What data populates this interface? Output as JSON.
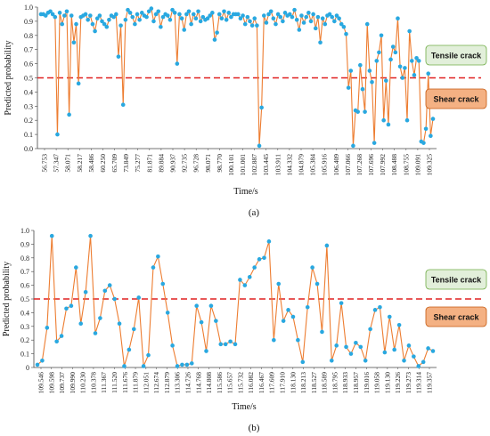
{
  "colors": {
    "line": "#ED7D31",
    "marker": "#29A8E0",
    "threshold": "#E02020",
    "tensile_box": "#E2EFDA",
    "tensile_border": "#70AD47",
    "shear_box": "#F4B183",
    "shear_border": "#C55A11",
    "axis": "#444444"
  },
  "chart_data": [
    {
      "type": "line",
      "panel_label": "(a)",
      "xlabel": "Time/s",
      "ylabel": "Predicted probability",
      "ylim": [
        0,
        1.0
      ],
      "yticks": [
        "0.0",
        "0.1",
        "0.2",
        "0.3",
        "0.4",
        "0.5",
        "0.6",
        "0.7",
        "0.8",
        "0.9",
        "1.0"
      ],
      "grid": false,
      "threshold": 0.5,
      "annotations": [
        {
          "text": "Tensile crack",
          "style": "tensile"
        },
        {
          "text": "Shear crack",
          "style": "shear"
        }
      ],
      "tick_labels": [
        "56.753",
        "57.347",
        "58.071",
        "58.217",
        "58.486",
        "60.250",
        "65.709",
        "73.849",
        "75.277",
        "81.871",
        "89.884",
        "90.937",
        "92.735",
        "96.728",
        "98.071",
        "98.770",
        "100.101",
        "101.001",
        "102.887",
        "103.445",
        "103.911",
        "104.332",
        "104.879",
        "105.384",
        "105.916",
        "106.409",
        "107.066",
        "107.268",
        "107.696",
        "107.992",
        "108.488",
        "108.755",
        "109.091",
        "109.325"
      ],
      "values": [
        0.95,
        0.95,
        0.94,
        0.96,
        0.97,
        0.95,
        0.93,
        0.1,
        0.96,
        0.88,
        0.94,
        0.97,
        0.24,
        0.94,
        0.75,
        0.88,
        0.46,
        0.93,
        0.94,
        0.95,
        0.91,
        0.94,
        0.88,
        0.83,
        0.92,
        0.94,
        0.9,
        0.88,
        0.86,
        0.91,
        0.94,
        0.93,
        0.95,
        0.65,
        0.87,
        0.31,
        0.91,
        0.98,
        0.96,
        0.93,
        0.88,
        0.95,
        0.91,
        0.96,
        0.94,
        0.93,
        0.97,
        0.99,
        0.9,
        0.95,
        0.97,
        0.86,
        0.93,
        0.95,
        0.94,
        0.91,
        0.98,
        0.96,
        0.6,
        0.95,
        0.92,
        0.84,
        0.95,
        0.97,
        0.88,
        0.95,
        0.92,
        0.97,
        0.9,
        0.93,
        0.91,
        0.92,
        0.94,
        0.96,
        0.77,
        0.82,
        0.95,
        0.92,
        0.97,
        0.91,
        0.96,
        0.93,
        0.95,
        0.95,
        0.95,
        0.92,
        0.94,
        0.88,
        0.93,
        0.9,
        0.87,
        0.92,
        0.87,
        0.02,
        0.29,
        0.94,
        0.89,
        0.95,
        0.97,
        0.92,
        0.88,
        0.95,
        0.93,
        0.9,
        0.96,
        0.94,
        0.95,
        0.93,
        0.98,
        0.91,
        0.84,
        0.94,
        0.89,
        0.93,
        0.96,
        0.9,
        0.95,
        0.85,
        0.93,
        0.75,
        0.92,
        0.88,
        0.94,
        0.95,
        0.93,
        0.9,
        0.94,
        0.92,
        0.88,
        0.86,
        0.81,
        0.43,
        0.55,
        0.02,
        0.27,
        0.26,
        0.59,
        0.42,
        0.26,
        0.88,
        0.55,
        0.47,
        0.04,
        0.62,
        0.68,
        0.8,
        0.2,
        0.48,
        0.17,
        0.63,
        0.72,
        0.68,
        0.92,
        0.58,
        0.5,
        0.57,
        0.2,
        0.83,
        0.62,
        0.52,
        0.64,
        0.62,
        0.05,
        0.04,
        0.14,
        0.53,
        0.09,
        0.21
      ]
    },
    {
      "type": "line",
      "panel_label": "(b)",
      "xlabel": "Time/s",
      "ylabel": "Predicted probability",
      "ylim": [
        0,
        1.0
      ],
      "yticks": [
        "0",
        "0.1",
        "0.2",
        "0.3",
        "0.4",
        "0.5",
        "0.6",
        "0.7",
        "0.8",
        "0.9",
        "1.0"
      ],
      "grid": false,
      "threshold": 0.5,
      "annotations": [
        {
          "text": "Tensile crack",
          "style": "tensile"
        },
        {
          "text": "Shear crack",
          "style": "shear"
        }
      ],
      "tick_labels": [
        "109.546",
        "109.598",
        "109.737",
        "109.990",
        "110.230",
        "110.378",
        "111.367",
        "111.520",
        "111.676",
        "111.879",
        "112.051",
        "112.674",
        "112.879",
        "113.306",
        "114.726",
        "114.768",
        "114.808",
        "115.586",
        "115.657",
        "115.732",
        "116.082",
        "116.467",
        "117.609",
        "117.910",
        "118.130",
        "118.213",
        "118.527",
        "118.589",
        "118.795",
        "118.933",
        "118.957",
        "119.016",
        "119.058",
        "119.130",
        "119.226",
        "119.273",
        "119.314",
        "119.357"
      ],
      "values": [
        0.02,
        0.05,
        0.29,
        0.96,
        0.19,
        0.23,
        0.43,
        0.45,
        0.73,
        0.32,
        0.55,
        0.96,
        0.25,
        0.36,
        0.56,
        0.6,
        0.5,
        0.32,
        0.01,
        0.13,
        0.28,
        0.51,
        0.01,
        0.09,
        0.73,
        0.81,
        0.61,
        0.4,
        0.16,
        0.01,
        0.02,
        0.02,
        0.03,
        0.45,
        0.33,
        0.12,
        0.45,
        0.34,
        0.17,
        0.17,
        0.19,
        0.17,
        0.64,
        0.6,
        0.66,
        0.73,
        0.79,
        0.8,
        0.92,
        0.2,
        0.61,
        0.34,
        0.42,
        0.37,
        0.2,
        0.04,
        0.44,
        0.73,
        0.61,
        0.26,
        0.89,
        0.05,
        0.16,
        0.47,
        0.15,
        0.1,
        0.18,
        0.15,
        0.05,
        0.28,
        0.42,
        0.44,
        0.11,
        0.37,
        0.13,
        0.31,
        0.05,
        0.16,
        0.08,
        0.01,
        0.04,
        0.14,
        0.12
      ]
    }
  ]
}
